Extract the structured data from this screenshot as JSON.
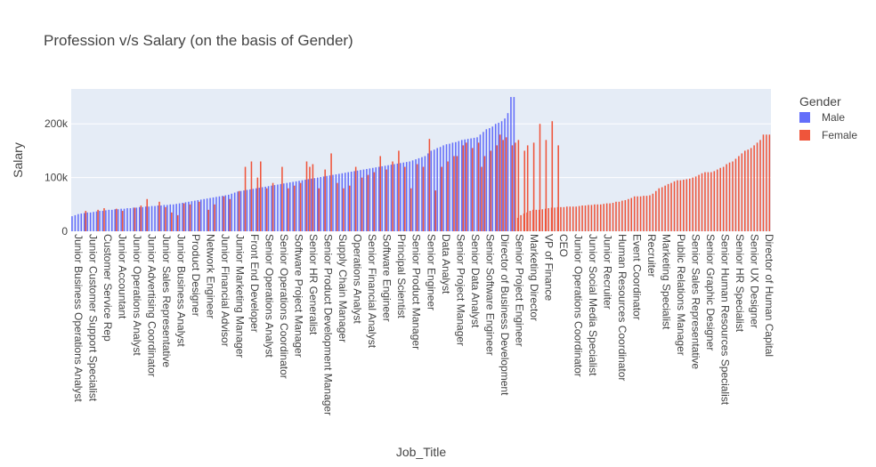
{
  "chart_data": {
    "type": "bar",
    "title": "Profession v/s Salary (on the basis of Gender)",
    "xlabel": "Job_Title",
    "ylabel": "Salary",
    "ylim": [
      0,
      265000
    ],
    "y_ticks": [
      {
        "value": 0,
        "label": "0"
      },
      {
        "value": 100000,
        "label": "100k"
      },
      {
        "value": 200000,
        "label": "200k"
      }
    ],
    "grid": true,
    "legend": {
      "title": "Gender",
      "placement": "top-right"
    },
    "plot_background": "#e5ecf6",
    "series": [
      {
        "name": "Male",
        "color": "#636efa",
        "values": [
          28000,
          30000,
          32000,
          33000,
          34000,
          35000,
          35000,
          36000,
          37000,
          38000,
          38000,
          39000,
          40000,
          40000,
          41000,
          41000,
          42000,
          42000,
          43000,
          43000,
          44000,
          44000,
          45000,
          45000,
          46000,
          46000,
          47000,
          47000,
          48000,
          48000,
          49000,
          49000,
          50000,
          50000,
          51000,
          52000,
          53000,
          54000,
          55000,
          56000,
          57000,
          58000,
          59000,
          60000,
          61000,
          62000,
          63000,
          64000,
          65000,
          66000,
          67000,
          68000,
          70000,
          72000,
          74000,
          75000,
          76000,
          77000,
          78000,
          79000,
          80000,
          81000,
          82000,
          83000,
          84000,
          85000,
          86000,
          87000,
          88000,
          89000,
          90000,
          91000,
          92000,
          93000,
          94000,
          95000,
          96000,
          97000,
          98000,
          99000,
          100000,
          101000,
          102000,
          103000,
          104000,
          105000,
          106000,
          107000,
          108000,
          109000,
          110000,
          111000,
          112000,
          113000,
          114000,
          115000,
          116000,
          117000,
          118000,
          119000,
          120000,
          121000,
          122000,
          123000,
          124000,
          125000,
          126000,
          127000,
          128000,
          129000,
          130000,
          132000,
          134000,
          136000,
          138000,
          140000,
          145000,
          150000,
          152000,
          155000,
          157000,
          160000,
          162000,
          163000,
          165000,
          166000,
          168000,
          170000,
          171000,
          172000,
          173000,
          174000,
          175000,
          180000,
          185000,
          190000,
          192000,
          195000,
          200000,
          202000,
          205000,
          210000,
          220000,
          250000,
          250000
        ]
      },
      {
        "name": "Female",
        "color": "#ef553b"
      }
    ],
    "female_overlay": [
      {
        "i": 4,
        "v": 38000
      },
      {
        "i": 8,
        "v": 40000
      },
      {
        "i": 10,
        "v": 43000
      },
      {
        "i": 14,
        "v": 42000
      },
      {
        "i": 16,
        "v": 38000
      },
      {
        "i": 20,
        "v": 44000
      },
      {
        "i": 22,
        "v": 48000
      },
      {
        "i": 24,
        "v": 60000
      },
      {
        "i": 28,
        "v": 55000
      },
      {
        "i": 30,
        "v": 45000
      },
      {
        "i": 32,
        "v": 35000
      },
      {
        "i": 34,
        "v": 30000
      },
      {
        "i": 36,
        "v": 52000
      },
      {
        "i": 38,
        "v": 50000
      },
      {
        "i": 41,
        "v": 55000
      },
      {
        "i": 44,
        "v": 40000
      },
      {
        "i": 46,
        "v": 50000
      },
      {
        "i": 49,
        "v": 65000
      },
      {
        "i": 51,
        "v": 60000
      },
      {
        "i": 54,
        "v": 75000
      },
      {
        "i": 56,
        "v": 120000
      },
      {
        "i": 58,
        "v": 130000
      },
      {
        "i": 60,
        "v": 100000
      },
      {
        "i": 61,
        "v": 130000
      },
      {
        "i": 63,
        "v": 80000
      },
      {
        "i": 65,
        "v": 90000
      },
      {
        "i": 68,
        "v": 120000
      },
      {
        "i": 70,
        "v": 80000
      },
      {
        "i": 72,
        "v": 85000
      },
      {
        "i": 74,
        "v": 90000
      },
      {
        "i": 76,
        "v": 130000
      },
      {
        "i": 77,
        "v": 120000
      },
      {
        "i": 78,
        "v": 125000
      },
      {
        "i": 80,
        "v": 80000
      },
      {
        "i": 82,
        "v": 115000
      },
      {
        "i": 84,
        "v": 145000
      },
      {
        "i": 86,
        "v": 90000
      },
      {
        "i": 88,
        "v": 80000
      },
      {
        "i": 90,
        "v": 85000
      },
      {
        "i": 92,
        "v": 120000
      },
      {
        "i": 94,
        "v": 100000
      },
      {
        "i": 96,
        "v": 105000
      },
      {
        "i": 98,
        "v": 110000
      },
      {
        "i": 100,
        "v": 140000
      },
      {
        "i": 102,
        "v": 115000
      },
      {
        "i": 104,
        "v": 130000
      },
      {
        "i": 106,
        "v": 150000
      },
      {
        "i": 108,
        "v": 120000
      },
      {
        "i": 110,
        "v": 80000
      },
      {
        "i": 112,
        "v": 125000
      },
      {
        "i": 114,
        "v": 120000
      },
      {
        "i": 116,
        "v": 172000
      },
      {
        "i": 118,
        "v": 76000
      },
      {
        "i": 120,
        "v": 120000
      },
      {
        "i": 122,
        "v": 130000
      },
      {
        "i": 124,
        "v": 140000
      },
      {
        "i": 125,
        "v": 140000
      },
      {
        "i": 127,
        "v": 160000
      },
      {
        "i": 128,
        "v": 165000
      },
      {
        "i": 130,
        "v": 155000
      },
      {
        "i": 132,
        "v": 165000
      },
      {
        "i": 133,
        "v": 120000
      },
      {
        "i": 134,
        "v": 140000
      },
      {
        "i": 136,
        "v": 150000
      },
      {
        "i": 138,
        "v": 160000
      },
      {
        "i": 139,
        "v": 180000
      },
      {
        "i": 140,
        "v": 170000
      },
      {
        "i": 141,
        "v": 175000
      },
      {
        "i": 143,
        "v": 160000
      },
      {
        "i": 144,
        "v": 165000
      },
      {
        "i": 145,
        "v": 170000
      },
      {
        "i": 147,
        "v": 150000
      },
      {
        "i": 148,
        "v": 160000
      },
      {
        "i": 150,
        "v": 165000
      },
      {
        "i": 152,
        "v": 200000
      },
      {
        "i": 154,
        "v": 170000
      },
      {
        "i": 156,
        "v": 205000
      },
      {
        "i": 158,
        "v": 160000
      }
    ],
    "female_only_values": [
      25000,
      30000,
      33000,
      35000,
      38000,
      40000,
      40000,
      40000,
      41000,
      42000,
      43000,
      44000,
      44000,
      45000,
      45000,
      45000,
      46000,
      46000,
      46000,
      46000,
      47000,
      48000,
      48000,
      49000,
      49000,
      50000,
      50000,
      50000,
      51000,
      52000,
      52000,
      53000,
      55000,
      55000,
      57000,
      58000,
      60000,
      62000,
      65000,
      65000,
      65000,
      66000,
      66000,
      67000,
      70000,
      75000,
      80000,
      82000,
      85000,
      88000,
      90000,
      93000,
      95000,
      95000,
      96000,
      97000,
      98000,
      100000,
      102000,
      105000,
      108000,
      110000,
      110000,
      110000,
      112000,
      115000,
      118000,
      120000,
      125000,
      128000,
      130000,
      135000,
      140000,
      145000,
      150000,
      152000,
      155000,
      160000,
      165000,
      170000,
      180000,
      180000,
      180000
    ],
    "x_tick_labels": [
      "Junior Business Operations Analyst",
      "Junior Customer Support Specialist",
      "Customer Service Rep",
      "Junior Accountant",
      "Junior Operations Analyst",
      "Junior Advertising Coordinator",
      "Junior Sales Representative",
      "Junior Business Analyst",
      "Product Designer",
      "Network Engineer",
      "Junior Financial Advisor",
      "Junior Marketing Manager",
      "Front End Developer",
      "Senior Operations Analyst",
      "Senior Operations Coordinator",
      "Software Project Manager",
      "Senior HR Generalist",
      "Senior Product Development Manager",
      "Supply Chain Manager",
      "Operations Analyst",
      "Senior Financial Analyst",
      "Software Engineer",
      "Principal Scientist",
      "Senior Product Manager",
      "Senior Engineer",
      "Data Analyst",
      "Senior Project Manager",
      "Senior Data Analyst",
      "Senior Software Engineer",
      "Director of Business Development",
      "Senior Project Engineer",
      "Marketing Director",
      "VP of Finance",
      "CEO",
      "Junior Operations Coordinator",
      "Junior Social Media Specialist",
      "Junior Recruiter",
      "Human Resources Coordinator",
      "Event Coordinator",
      "Recruiter",
      "Marketing Specialist",
      "Public Relations Manager",
      "Senior Sales Representative",
      "Senior Graphic Designer",
      "Senior Human Resources Specialist",
      "Senior HR Specialist",
      "Senior UX Designer",
      "Director of Human Capital"
    ]
  }
}
